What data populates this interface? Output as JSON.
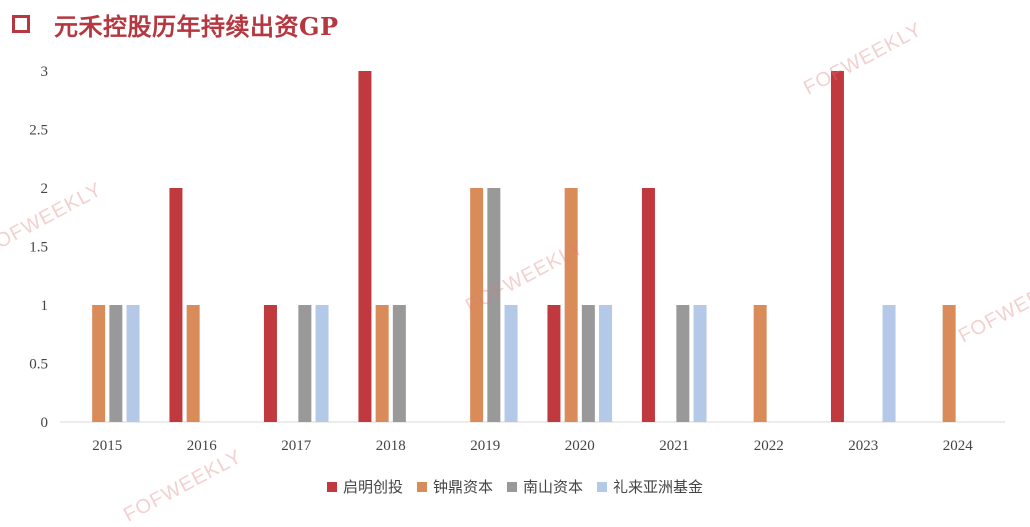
{
  "title": "元禾控股历年持续出资GP",
  "watermark_text": "FOFWEEKLY",
  "colors": {
    "title": "#b5373f",
    "series": [
      "#c0393f",
      "#d98c5a",
      "#999999",
      "#b4c8e8"
    ],
    "grid": "#d9d9d9"
  },
  "chart_data": {
    "type": "bar",
    "title": "元禾控股历年持续出资GP",
    "categories": [
      "2015",
      "2016",
      "2017",
      "2018",
      "2019",
      "2020",
      "2021",
      "2022",
      "2023",
      "2024"
    ],
    "series": [
      {
        "name": "启明创投",
        "values": [
          0,
          2,
          1,
          3,
          0,
          1,
          2,
          0,
          3,
          0
        ]
      },
      {
        "name": "钟鼎资本",
        "values": [
          1,
          1,
          0,
          1,
          2,
          2,
          0,
          1,
          0,
          1
        ]
      },
      {
        "name": "南山资本",
        "values": [
          1,
          0,
          1,
          1,
          2,
          1,
          1,
          0,
          0,
          0
        ]
      },
      {
        "name": "礼来亚洲基金",
        "values": [
          1,
          0,
          1,
          0,
          1,
          1,
          1,
          0,
          1,
          0
        ]
      }
    ],
    "yticks": [
      "0",
      "0.5",
      "1",
      "1.5",
      "2",
      "2.5",
      "3"
    ],
    "ylim": [
      0,
      3
    ],
    "xlabel": "",
    "ylabel": "",
    "grid": false,
    "legend": "bottom"
  }
}
